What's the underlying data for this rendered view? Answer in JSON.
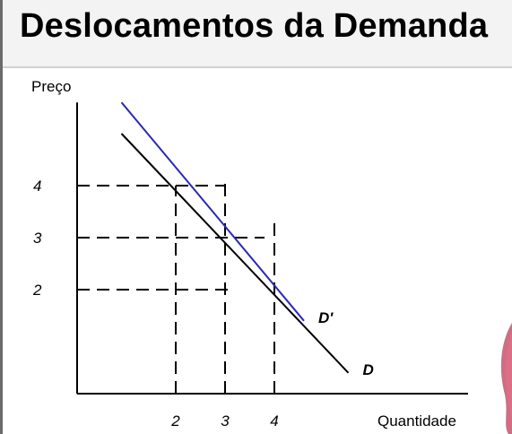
{
  "title": "Deslocamentos da Demanda",
  "colors": {
    "background": "#ffffff",
    "title_band": "#f3f3f3",
    "axis": "#000000",
    "demand": "#000000",
    "shifted_demand": "#2b2bb0",
    "guides": "#000000",
    "decoration": "#c23c5a"
  },
  "chart_data": {
    "type": "line",
    "ylabel": "Preço",
    "xlabel": "Quantidade",
    "x_ticks": [
      "2",
      "3",
      "4"
    ],
    "y_ticks": [
      "2",
      "3",
      "4"
    ],
    "xlim": [
      0,
      7.2
    ],
    "ylim": [
      0,
      6.2
    ],
    "grid": false,
    "series": [
      {
        "name": "D",
        "color": "#000000",
        "points": [
          [
            0.9,
            5.0
          ],
          [
            5.5,
            0.4
          ]
        ]
      },
      {
        "name": "D'",
        "color": "#2b2bb0",
        "points": [
          [
            0.9,
            5.6
          ],
          [
            4.6,
            1.4
          ]
        ]
      }
    ],
    "guides": [
      {
        "from": [
          0,
          4
        ],
        "to": [
          3.0,
          4
        ]
      },
      {
        "from": [
          0,
          3
        ],
        "to": [
          3.8,
          3
        ]
      },
      {
        "from": [
          0,
          2
        ],
        "to": [
          3.2,
          2
        ]
      },
      {
        "from": [
          2,
          0
        ],
        "to": [
          2,
          4
        ]
      },
      {
        "from": [
          3,
          0
        ],
        "to": [
          3,
          4.1
        ]
      },
      {
        "from": [
          4,
          0
        ],
        "to": [
          4,
          3.3
        ]
      }
    ]
  }
}
